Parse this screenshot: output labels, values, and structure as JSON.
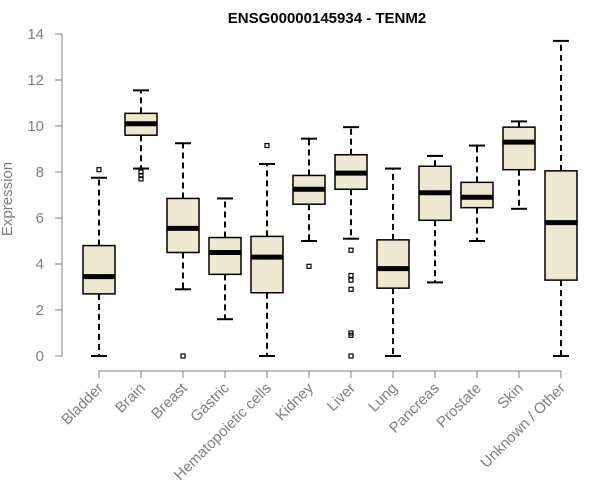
{
  "chart_data": {
    "type": "boxplot",
    "title": "ENSG00000145934 - TENM2",
    "xlabel": "",
    "ylabel": "Expression",
    "ylim": [
      0,
      14
    ],
    "yticks": [
      0,
      2,
      4,
      6,
      8,
      10,
      12,
      14
    ],
    "grid": false,
    "box_fill": "#EEE8D0",
    "box_stroke": "#000000",
    "categories": [
      "Bladder",
      "Brain",
      "Breast",
      "Gastric",
      "Hematopoietic cells",
      "Kidney",
      "Liver",
      "Lung",
      "Pancreas",
      "Prostate",
      "Skin",
      "Unknown / Other"
    ],
    "boxes": [
      {
        "category": "Bladder",
        "min": 0.0,
        "q1": 2.7,
        "median": 3.45,
        "q3": 4.8,
        "max": 7.75,
        "outliers": [
          8.1
        ]
      },
      {
        "category": "Brain",
        "min": 8.15,
        "q1": 9.6,
        "median": 10.1,
        "q3": 10.55,
        "max": 11.55,
        "outliers": [
          8.0,
          7.85,
          7.7
        ]
      },
      {
        "category": "Breast",
        "min": 2.9,
        "q1": 4.5,
        "median": 5.55,
        "q3": 6.85,
        "max": 9.25,
        "outliers": [
          0.0
        ]
      },
      {
        "category": "Gastric",
        "min": 1.6,
        "q1": 3.55,
        "median": 4.5,
        "q3": 5.15,
        "max": 6.85,
        "outliers": []
      },
      {
        "category": "Hematopoietic cells",
        "min": 0.0,
        "q1": 2.75,
        "median": 4.3,
        "q3": 5.2,
        "max": 8.35,
        "outliers": [
          9.15
        ]
      },
      {
        "category": "Kidney",
        "min": 5.0,
        "q1": 6.6,
        "median": 7.25,
        "q3": 7.85,
        "max": 9.45,
        "outliers": [
          3.9
        ]
      },
      {
        "category": "Liver",
        "min": 5.1,
        "q1": 7.25,
        "median": 7.95,
        "q3": 8.75,
        "max": 9.95,
        "outliers": [
          4.6,
          3.5,
          3.3,
          2.9,
          1.0,
          0.9,
          0.0
        ]
      },
      {
        "category": "Lung",
        "min": 0.0,
        "q1": 2.95,
        "median": 3.8,
        "q3": 5.05,
        "max": 8.15,
        "outliers": []
      },
      {
        "category": "Pancreas",
        "min": 3.2,
        "q1": 5.9,
        "median": 7.1,
        "q3": 8.25,
        "max": 8.7,
        "outliers": []
      },
      {
        "category": "Prostate",
        "min": 5.0,
        "q1": 6.45,
        "median": 6.9,
        "q3": 7.55,
        "max": 9.15,
        "outliers": []
      },
      {
        "category": "Skin",
        "min": 6.4,
        "q1": 8.1,
        "median": 9.3,
        "q3": 9.95,
        "max": 10.2,
        "outliers": []
      },
      {
        "category": "Unknown / Other",
        "min": 0.0,
        "q1": 3.3,
        "median": 5.8,
        "q3": 8.05,
        "max": 13.7,
        "outliers": []
      }
    ]
  }
}
